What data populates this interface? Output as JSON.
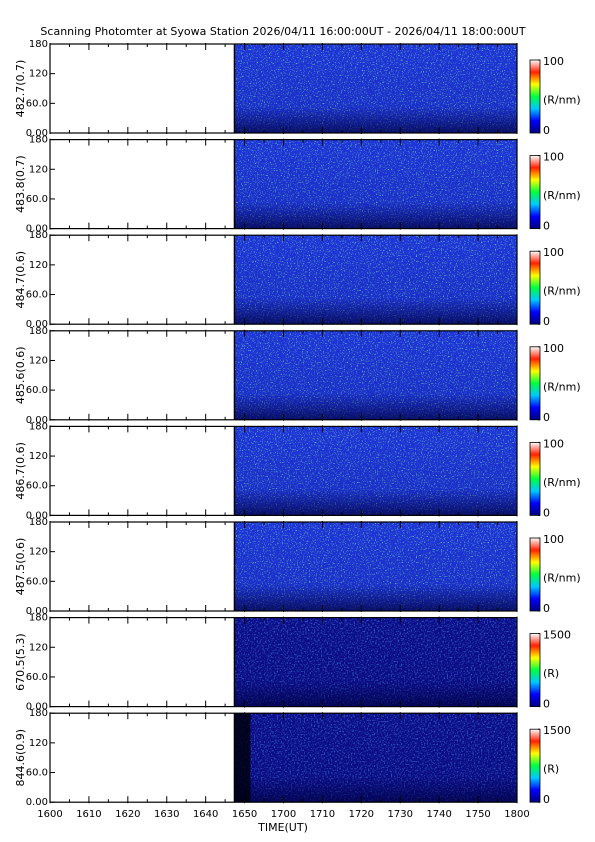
{
  "title": "Scanning Photomter at Syowa Station  2026/04/11 16:00:00UT - 2026/04/11 18:00:00UT",
  "xlabel": "TIME(UT)",
  "xticks": [
    "1600",
    "1610",
    "1620",
    "1630",
    "1640",
    "1650",
    "1700",
    "1710",
    "1720",
    "1730",
    "1740",
    "1750",
    "1800"
  ],
  "colorscale": [
    "#000080",
    "#0000ff",
    "#00c8ff",
    "#00ff40",
    "#ffff00",
    "#ff2000",
    "#ffffff"
  ],
  "chart_data": [
    {
      "type": "heatmap",
      "ylabel": "482.7(0.7)",
      "ylim": [
        0,
        180
      ],
      "yticks": [
        {
          "value": 0,
          "label": "0.00"
        },
        {
          "value": 60,
          "label": "60.0"
        },
        120,
        180
      ],
      "clim": [
        0,
        100
      ],
      "cticks": [
        0,
        100
      ],
      "clabel": "(R/nm)"
    },
    {
      "type": "heatmap",
      "ylabel": "483.8(0.7)",
      "ylim": [
        0,
        180
      ],
      "yticks": [
        {
          "value": 0,
          "label": "0.00"
        },
        {
          "value": 60,
          "label": "60.0"
        },
        120,
        180
      ],
      "clim": [
        0,
        100
      ],
      "cticks": [
        0,
        100
      ],
      "clabel": "(R/nm)"
    },
    {
      "type": "heatmap",
      "ylabel": "484.7(0.6)",
      "ylim": [
        0,
        180
      ],
      "yticks": [
        {
          "value": 0,
          "label": "0.00"
        },
        {
          "value": 60,
          "label": "60.0"
        },
        120,
        180
      ],
      "clim": [
        0,
        100
      ],
      "cticks": [
        0,
        100
      ],
      "clabel": "(R/nm)"
    },
    {
      "type": "heatmap",
      "ylabel": "485.6(0.6)",
      "ylim": [
        0,
        180
      ],
      "yticks": [
        {
          "value": 0,
          "label": "0.00"
        },
        {
          "value": 60,
          "label": "60.0"
        },
        120,
        180
      ],
      "clim": [
        0,
        100
      ],
      "cticks": [
        0,
        100
      ],
      "clabel": "(R/nm)"
    },
    {
      "type": "heatmap",
      "ylabel": "486.7(0.6)",
      "ylim": [
        0,
        180
      ],
      "yticks": [
        {
          "value": 0,
          "label": "0.00"
        },
        {
          "value": 60,
          "label": "60.0"
        },
        120,
        180
      ],
      "clim": [
        0,
        100
      ],
      "cticks": [
        0,
        100
      ],
      "clabel": "(R/nm)"
    },
    {
      "type": "heatmap",
      "ylabel": "487.5(0.6)",
      "ylim": [
        0,
        180
      ],
      "yticks": [
        {
          "value": 0,
          "label": "0.00"
        },
        {
          "value": 60,
          "label": "60.0"
        },
        120,
        180
      ],
      "clim": [
        0,
        100
      ],
      "cticks": [
        0,
        100
      ],
      "clabel": "(R/nm)"
    },
    {
      "type": "heatmap",
      "ylabel": "670.5(5.3)",
      "ylim": [
        0,
        180
      ],
      "yticks": [
        {
          "value": 0,
          "label": "0.00"
        },
        {
          "value": 60,
          "label": "60.0"
        },
        120,
        180
      ],
      "clim": [
        0,
        1500
      ],
      "cticks": [
        0,
        1500
      ],
      "clabel": "(R)"
    },
    {
      "type": "heatmap",
      "ylabel": "844.6(0.9)",
      "ylim": [
        0,
        180
      ],
      "yticks": [
        {
          "value": 0,
          "label": "0.00"
        },
        {
          "value": 60,
          "label": "60.0"
        },
        120,
        180
      ],
      "clim": [
        0,
        1500
      ],
      "cticks": [
        0,
        1500
      ],
      "clabel": "(R)"
    }
  ]
}
